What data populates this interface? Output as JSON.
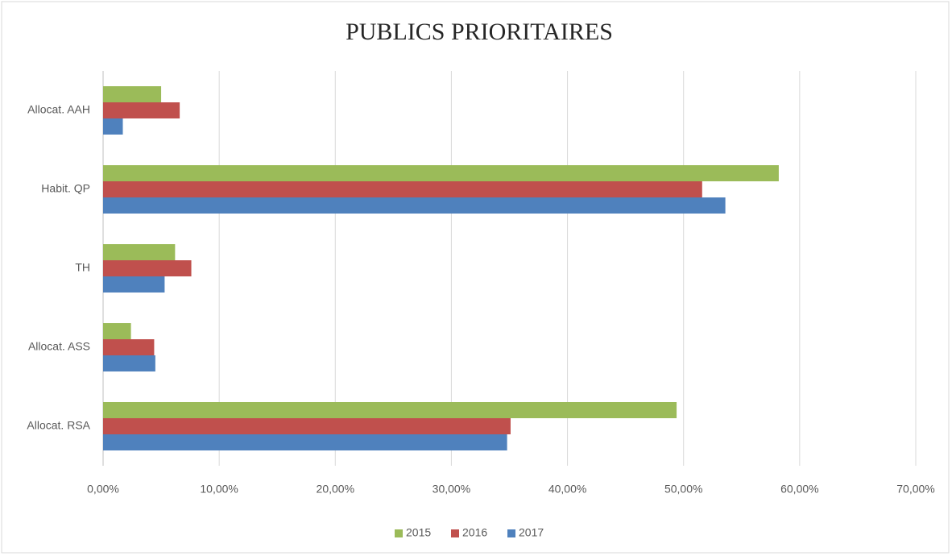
{
  "chart_data": {
    "type": "bar",
    "orientation": "horizontal",
    "title": "PUBLICS PRIORITAIRES",
    "categories": [
      "Allocat. AAH",
      "Habit. QP",
      "TH",
      "Allocat. ASS",
      "Allocat. RSA"
    ],
    "series": [
      {
        "name": "2015",
        "color": "#9bbb59",
        "values": [
          5.0,
          58.2,
          6.2,
          2.4,
          49.4
        ]
      },
      {
        "name": "2016",
        "color": "#c0504d",
        "values": [
          6.6,
          51.6,
          7.6,
          4.4,
          35.1
        ]
      },
      {
        "name": "2017",
        "color": "#4f81bd",
        "values": [
          1.7,
          53.6,
          5.3,
          4.5,
          34.8
        ]
      }
    ],
    "xlim": [
      0,
      70
    ],
    "xticks": [
      {
        "value": 0,
        "label": "0,00%"
      },
      {
        "value": 10,
        "label": "10,00%"
      },
      {
        "value": 20,
        "label": "20,00%"
      },
      {
        "value": 30,
        "label": "30,00%"
      },
      {
        "value": 40,
        "label": "40,00%"
      },
      {
        "value": 50,
        "label": "50,00%"
      },
      {
        "value": 60,
        "label": "60,00%"
      },
      {
        "value": 70,
        "label": "70,00%"
      }
    ],
    "grid": true,
    "legend": "bottom"
  }
}
